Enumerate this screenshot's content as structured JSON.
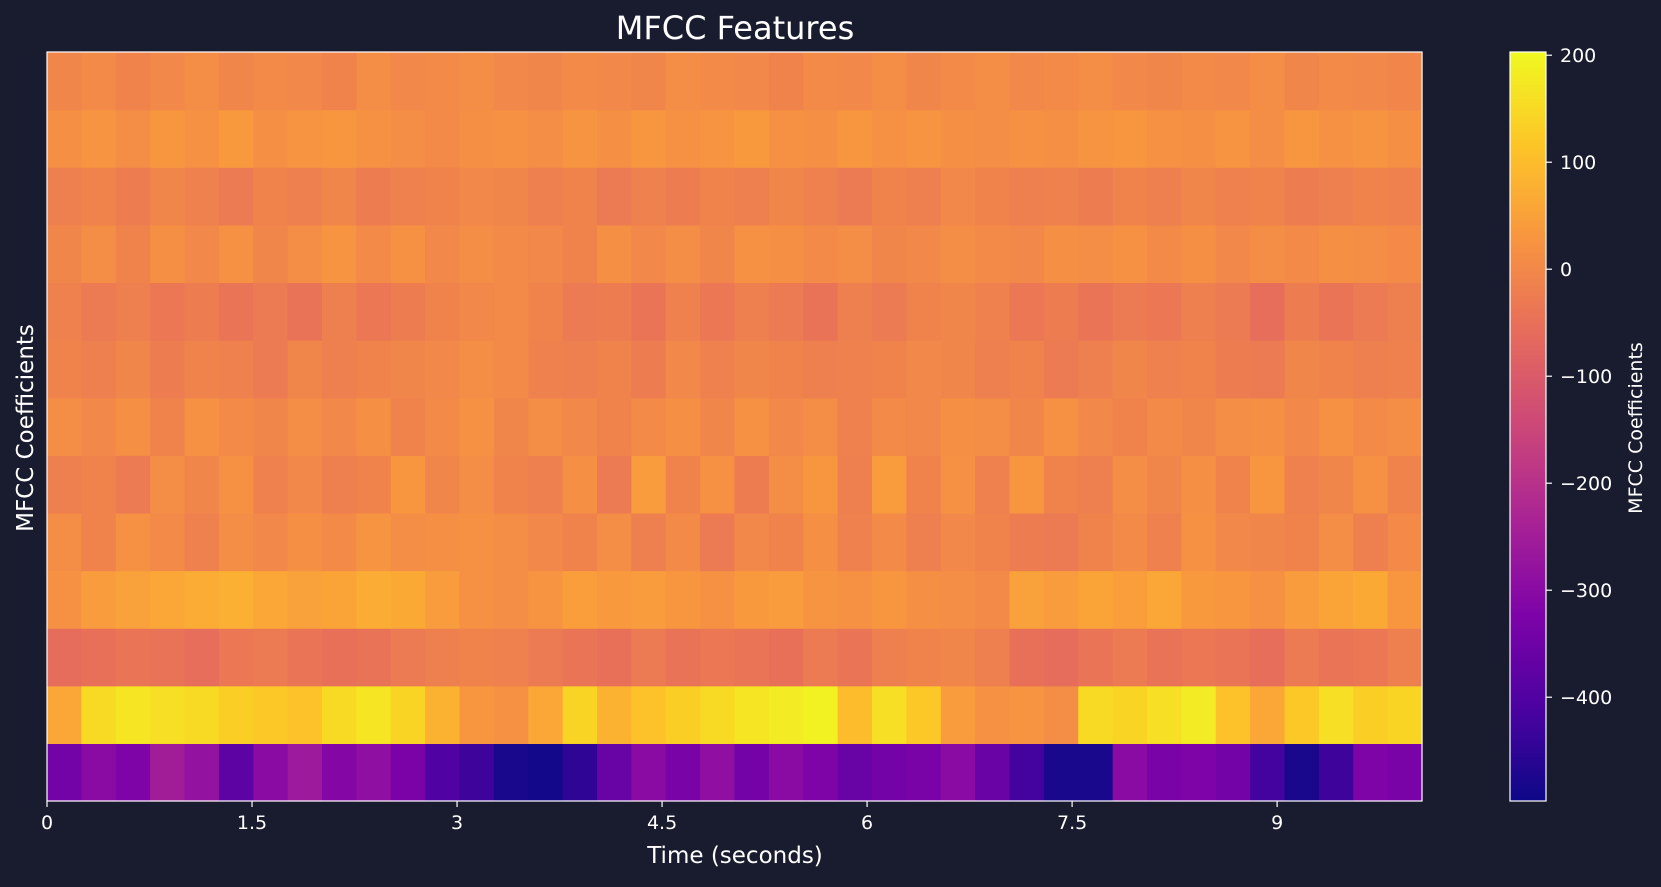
{
  "chart_data": {
    "type": "heatmap",
    "title": "MFCC Features",
    "xlabel": "Time (seconds)",
    "ylabel": "MFCC Coefficients",
    "xlim": [
      0,
      10.06
    ],
    "x_ticks": [
      0,
      1.5,
      3,
      4.5,
      6,
      7.5,
      9
    ],
    "x_tick_labels": [
      "0",
      "1.5",
      "3",
      "4.5",
      "6",
      "7.5",
      "9"
    ],
    "n_coefficients": 13,
    "colormap": "plasma",
    "colorbar": {
      "label": "MFCC Coefficients",
      "vmin": -497,
      "vmax": 203,
      "ticks": [
        200,
        100,
        0,
        -100,
        -200,
        -300,
        -400
      ],
      "tick_labels": [
        "200",
        "100",
        "0",
        "−100",
        "−200",
        "−300",
        "−400"
      ]
    },
    "row_order": "bottom-to-top, coefficient 0 at bottom",
    "time_frames_per_row": 40,
    "values": [
      [
        -340,
        -300,
        -320,
        -250,
        -280,
        -380,
        -300,
        -260,
        -310,
        -290,
        -330,
        -400,
        -430,
        -480,
        -490,
        -450,
        -360,
        -300,
        -330,
        -290,
        -340,
        -300,
        -320,
        -360,
        -340,
        -330,
        -300,
        -360,
        -420,
        -480,
        -480,
        -300,
        -330,
        -320,
        -340,
        -420,
        -480,
        -430,
        -320,
        -330
      ],
      [
        60,
        150,
        170,
        160,
        150,
        130,
        120,
        110,
        150,
        170,
        140,
        80,
        30,
        20,
        60,
        140,
        80,
        110,
        130,
        150,
        170,
        180,
        190,
        100,
        160,
        120,
        40,
        20,
        25,
        10,
        150,
        140,
        160,
        180,
        110,
        60,
        120,
        160,
        130,
        140
      ],
      [
        -60,
        -50,
        -40,
        -45,
        -55,
        -35,
        -30,
        -40,
        -50,
        -45,
        -30,
        -20,
        -10,
        -15,
        -30,
        -40,
        -50,
        -30,
        -45,
        -35,
        -40,
        -50,
        -30,
        -40,
        -20,
        -10,
        -5,
        -20,
        -50,
        -60,
        -40,
        -30,
        -45,
        -35,
        -40,
        -55,
        -30,
        -40,
        -35,
        -20
      ],
      [
        20,
        40,
        50,
        60,
        70,
        75,
        60,
        50,
        55,
        70,
        65,
        40,
        20,
        10,
        25,
        45,
        35,
        40,
        30,
        20,
        35,
        40,
        25,
        20,
        30,
        15,
        10,
        5,
        50,
        40,
        55,
        45,
        60,
        35,
        30,
        20,
        40,
        55,
        65,
        30
      ],
      [
        10,
        -10,
        20,
        5,
        -15,
        10,
        0,
        15,
        5,
        25,
        10,
        15,
        20,
        10,
        0,
        -10,
        10,
        -20,
        5,
        -30,
        0,
        -10,
        15,
        -15,
        5,
        -20,
        0,
        -10,
        -25,
        -30,
        -10,
        5,
        -15,
        20,
        0,
        -5,
        -10,
        10,
        -20,
        5
      ],
      [
        -20,
        -10,
        -30,
        10,
        -5,
        20,
        -15,
        0,
        -20,
        -10,
        30,
        -5,
        10,
        -10,
        -20,
        15,
        -30,
        40,
        -10,
        20,
        -25,
        10,
        30,
        -20,
        40,
        -10,
        20,
        -15,
        30,
        -10,
        -20,
        10,
        -5,
        15,
        -10,
        30,
        -15,
        -5,
        20,
        -10
      ],
      [
        10,
        0,
        15,
        -10,
        20,
        5,
        -5,
        10,
        0,
        15,
        -10,
        5,
        20,
        -5,
        10,
        0,
        -10,
        5,
        15,
        -5,
        20,
        0,
        10,
        -15,
        5,
        0,
        15,
        10,
        -5,
        20,
        0,
        -10,
        5,
        -5,
        10,
        15,
        0,
        20,
        5,
        10
      ],
      [
        -10,
        -20,
        -5,
        -25,
        -10,
        -15,
        -30,
        -5,
        -20,
        -10,
        -5,
        0,
        10,
        5,
        -15,
        -20,
        -10,
        -25,
        0,
        -15,
        -5,
        -10,
        -20,
        -15,
        -10,
        0,
        -5,
        -20,
        -10,
        -30,
        -20,
        -5,
        -15,
        -10,
        -25,
        -30,
        -5,
        -10,
        -20,
        -15
      ],
      [
        -15,
        -30,
        -20,
        -35,
        -25,
        -40,
        -30,
        -45,
        -20,
        -35,
        -25,
        -10,
        0,
        5,
        -10,
        -30,
        -25,
        -40,
        -15,
        -35,
        -20,
        -30,
        -45,
        -20,
        -30,
        -10,
        -5,
        -15,
        -35,
        -25,
        -40,
        -30,
        -35,
        -20,
        -30,
        -55,
        -25,
        -40,
        -30,
        -20
      ],
      [
        -5,
        10,
        -10,
        15,
        0,
        20,
        -5,
        10,
        25,
        5,
        20,
        0,
        10,
        5,
        0,
        -10,
        15,
        0,
        10,
        -5,
        20,
        15,
        5,
        10,
        -5,
        0,
        10,
        5,
        0,
        15,
        10,
        20,
        5,
        15,
        0,
        10,
        5,
        15,
        10,
        5
      ],
      [
        -20,
        -10,
        -25,
        -5,
        -15,
        -30,
        -10,
        -20,
        -5,
        -25,
        -15,
        -10,
        0,
        -5,
        -20,
        -10,
        -30,
        -15,
        -25,
        -10,
        -20,
        -5,
        -15,
        -30,
        -10,
        -20,
        0,
        -10,
        -20,
        -15,
        -25,
        -10,
        -20,
        -5,
        -15,
        -10,
        -25,
        -20,
        -10,
        -15
      ],
      [
        15,
        25,
        10,
        30,
        20,
        35,
        15,
        25,
        30,
        20,
        10,
        5,
        15,
        20,
        10,
        25,
        15,
        30,
        20,
        25,
        35,
        20,
        15,
        30,
        20,
        25,
        15,
        10,
        20,
        15,
        25,
        30,
        20,
        15,
        25,
        10,
        30,
        20,
        25,
        15
      ],
      [
        -5,
        5,
        -10,
        0,
        10,
        -5,
        5,
        0,
        -10,
        10,
        0,
        5,
        10,
        0,
        -5,
        5,
        0,
        -5,
        10,
        5,
        0,
        -10,
        5,
        0,
        10,
        -5,
        5,
        10,
        0,
        5,
        10,
        0,
        -5,
        5,
        0,
        10,
        -5,
        5,
        0,
        -5
      ]
    ]
  }
}
